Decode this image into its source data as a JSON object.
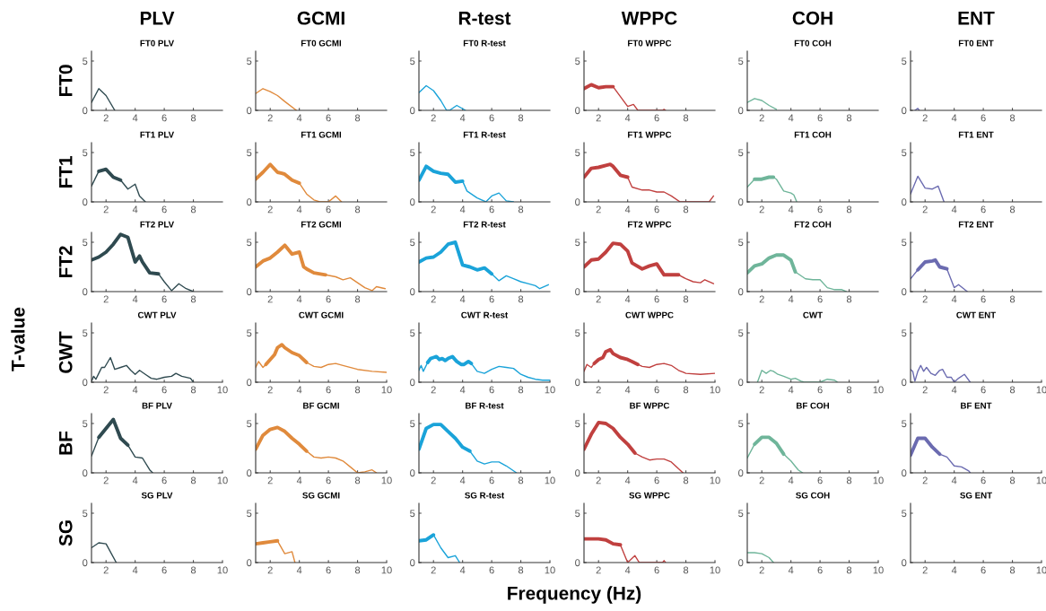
{
  "chart_data": [
    {
      "type": "line",
      "title": "FT0 PLV",
      "subtitle": "PLV",
      "ylabel": "FT0",
      "xlim": [
        1,
        10
      ],
      "ylim": [
        0,
        6
      ],
      "xticks": [
        2,
        4,
        6,
        8
      ],
      "yticks": [
        0,
        5
      ],
      "series": [
        {
          "color": "#2f4a50",
          "x": [
            1,
            1.5,
            2,
            2.6
          ],
          "values": [
            0.8,
            2.2,
            1.5,
            0
          ]
        }
      ]
    },
    {
      "type": "line",
      "title": "FT0 GCMI",
      "subtitle": "GCMI",
      "xlim": [
        1,
        10
      ],
      "ylim": [
        0,
        6
      ],
      "xticks": [
        2,
        4,
        6,
        8
      ],
      "yticks": [
        0,
        5
      ],
      "series": [
        {
          "color": "#e08a3c",
          "x": [
            1,
            1.5,
            2,
            2.5,
            3,
            3.8
          ],
          "values": [
            1.7,
            2.2,
            1.9,
            1.5,
            0.9,
            0
          ]
        }
      ]
    },
    {
      "type": "line",
      "title": "FT0 R-test",
      "subtitle": "R-test",
      "xlim": [
        1,
        10
      ],
      "ylim": [
        0,
        6
      ],
      "xticks": [
        2,
        4,
        6,
        8
      ],
      "yticks": [
        0,
        5
      ],
      "series": [
        {
          "color": "#1aa3d9",
          "x": [
            1,
            1.5,
            2,
            2.5,
            2.9,
            3.1,
            3.6,
            4.2
          ],
          "values": [
            1.8,
            2.5,
            2.0,
            1.0,
            0,
            0,
            0.5,
            0
          ]
        }
      ]
    },
    {
      "type": "line",
      "title": "FT0 WPPC",
      "subtitle": "WPPC",
      "xlim": [
        1,
        10
      ],
      "ylim": [
        0,
        6
      ],
      "xticks": [
        2,
        4,
        6,
        8
      ],
      "yticks": [
        0,
        5
      ],
      "series": [
        {
          "color": "#c0403f",
          "x": [
            1,
            1.5,
            2,
            2.5,
            3,
            3.5,
            4,
            4.4,
            4.7,
            6.4,
            6.5,
            6.6
          ],
          "values": [
            2.2,
            2.6,
            2.3,
            2.4,
            2.4,
            1.4,
            0.4,
            0.6,
            0,
            0,
            0.1,
            0
          ]
        },
        {
          "color": "#c0403f",
          "x": [
            1,
            1.5,
            2,
            2.5,
            3
          ],
          "values": [
            2.2,
            2.6,
            2.3,
            2.4,
            2.4
          ]
        }
      ]
    },
    {
      "type": "line",
      "title": "FT0 COH",
      "subtitle": "COH",
      "xlim": [
        1,
        10
      ],
      "ylim": [
        0,
        6
      ],
      "xticks": [
        2,
        4,
        6,
        8
      ],
      "yticks": [
        0,
        5
      ],
      "series": [
        {
          "color": "#6fb59a",
          "x": [
            1,
            1.5,
            2,
            2.5,
            3
          ],
          "values": [
            0.8,
            1.2,
            1.0,
            0.5,
            0.1
          ]
        }
      ]
    },
    {
      "type": "line",
      "title": "FT0 ENT",
      "subtitle": "ENT",
      "xlim": [
        1,
        10
      ],
      "ylim": [
        0,
        6
      ],
      "xticks": [
        2,
        4,
        6,
        8
      ],
      "yticks": [
        0,
        5
      ],
      "series": [
        {
          "color": "#6b6bb0",
          "x": [
            1.3,
            1.5,
            1.6
          ],
          "values": [
            0,
            0.2,
            0
          ]
        }
      ]
    },
    {
      "type": "line",
      "title": "FT1 PLV",
      "ylabel": "FT1",
      "xlim": [
        1,
        10
      ],
      "ylim": [
        0,
        6
      ],
      "xticks": [
        2,
        4,
        6,
        8
      ],
      "yticks": [
        0,
        5
      ],
      "series": [
        {
          "color": "#2f4a50",
          "x": [
            1,
            1.5,
            2,
            2.5,
            3,
            3.5,
            4,
            4.3,
            4.7
          ],
          "values": [
            1.6,
            3.1,
            3.3,
            2.5,
            2.2,
            1.3,
            1.8,
            0.6,
            0
          ]
        },
        {
          "color": "#2f4a50",
          "x": [
            1.5,
            2,
            2.5,
            3
          ],
          "values": [
            3.1,
            3.3,
            2.5,
            2.2
          ]
        }
      ]
    },
    {
      "type": "line",
      "title": "FT1 GCMI",
      "xlim": [
        1,
        10
      ],
      "ylim": [
        0,
        6
      ],
      "xticks": [
        2,
        4,
        6,
        8
      ],
      "yticks": [
        0,
        5
      ],
      "series": [
        {
          "color": "#e08a3c",
          "x": [
            1,
            1.5,
            2,
            2.5,
            2.8,
            3,
            3.5,
            4,
            4.5,
            5,
            5.4,
            6,
            6.5,
            6.9
          ],
          "values": [
            2.3,
            3.0,
            3.8,
            3.0,
            2.9,
            2.8,
            2.2,
            1.9,
            0.8,
            0.2,
            0,
            0,
            0.6,
            0
          ]
        },
        {
          "color": "#e08a3c",
          "x": [
            1,
            1.5,
            2,
            2.5,
            2.8,
            3,
            3.5,
            4
          ],
          "values": [
            2.3,
            3.0,
            3.8,
            3.0,
            2.9,
            2.8,
            2.2,
            1.9
          ]
        }
      ]
    },
    {
      "type": "line",
      "title": "FT1 R-test",
      "xlim": [
        1,
        10
      ],
      "ylim": [
        0,
        6
      ],
      "xticks": [
        2,
        4,
        6,
        8
      ],
      "yticks": [
        0,
        5
      ],
      "series": [
        {
          "color": "#1aa3d9",
          "x": [
            1,
            1.5,
            2,
            2.5,
            3,
            3.5,
            4,
            4.3,
            5,
            5.6,
            6,
            6.5,
            7,
            7.5
          ],
          "values": [
            2.2,
            3.6,
            3.1,
            2.9,
            2.8,
            2.0,
            2.1,
            1.1,
            0.4,
            0,
            0.6,
            0.9,
            0.1,
            0
          ]
        },
        {
          "color": "#1aa3d9",
          "x": [
            1,
            1.5,
            2,
            2.5,
            3,
            3.5,
            4
          ],
          "values": [
            2.2,
            3.6,
            3.1,
            2.9,
            2.8,
            2.0,
            2.1
          ]
        }
      ]
    },
    {
      "type": "line",
      "title": "FT1 WPPC",
      "xlim": [
        1,
        10
      ],
      "ylim": [
        0,
        6
      ],
      "xticks": [
        2,
        4,
        6,
        8
      ],
      "yticks": [
        0,
        5
      ],
      "series": [
        {
          "color": "#c0403f",
          "x": [
            1,
            1.5,
            2,
            2.5,
            2.8,
            3,
            3.5,
            4,
            4.3,
            5,
            5.5,
            6,
            6.5,
            7,
            7.6,
            9.6,
            9.9
          ],
          "values": [
            2.5,
            3.4,
            3.5,
            3.7,
            3.8,
            3.6,
            2.7,
            2.5,
            1.5,
            1.2,
            1.2,
            1.0,
            1.0,
            0.6,
            0,
            0,
            0.6
          ]
        },
        {
          "color": "#c0403f",
          "x": [
            1,
            1.5,
            2,
            2.5,
            2.8,
            3,
            3.5,
            4
          ],
          "values": [
            2.5,
            3.4,
            3.5,
            3.7,
            3.8,
            3.6,
            2.7,
            2.5
          ]
        }
      ]
    },
    {
      "type": "line",
      "title": "FT1 COH",
      "xlim": [
        1,
        10
      ],
      "ylim": [
        0,
        6
      ],
      "xticks": [
        2,
        4,
        6,
        8
      ],
      "yticks": [
        0,
        5
      ],
      "series": [
        {
          "color": "#6fb59a",
          "x": [
            1,
            1.5,
            2,
            2.5,
            2.8,
            3,
            3.5,
            4,
            4.2,
            4.4
          ],
          "values": [
            1.5,
            2.3,
            2.3,
            2.5,
            2.5,
            2.3,
            1.1,
            0.9,
            0.7,
            0
          ]
        },
        {
          "color": "#6fb59a",
          "x": [
            1.5,
            2,
            2.5,
            2.8
          ],
          "values": [
            2.3,
            2.3,
            2.5,
            2.5
          ]
        }
      ]
    },
    {
      "type": "line",
      "title": "FT1 ENT",
      "xlim": [
        1,
        10
      ],
      "ylim": [
        0,
        6
      ],
      "xticks": [
        2,
        4,
        6,
        8
      ],
      "yticks": [
        0,
        5
      ],
      "series": [
        {
          "color": "#6b6bb0",
          "x": [
            1,
            1.5,
            2,
            2.5,
            2.9,
            3.3
          ],
          "values": [
            0.8,
            2.6,
            1.4,
            1.3,
            1.6,
            0
          ]
        }
      ]
    },
    {
      "type": "line",
      "title": "FT2 PLV",
      "ylabel": "FT2",
      "xlim": [
        1,
        10
      ],
      "ylim": [
        0,
        6
      ],
      "xticks": [
        2,
        4,
        6,
        8
      ],
      "yticks": [
        0,
        5
      ],
      "series": [
        {
          "color": "#2f4a50",
          "x": [
            1,
            1.5,
            2,
            2.5,
            3,
            3.5,
            4,
            4.3,
            4.5,
            5,
            5.6,
            6,
            6.5,
            7,
            7.5,
            8
          ],
          "values": [
            3.2,
            3.5,
            4.0,
            4.8,
            5.8,
            5.5,
            3.0,
            3.6,
            3.0,
            1.9,
            1.8,
            1.0,
            0.1,
            0.8,
            0.3,
            0
          ]
        },
        {
          "color": "#2f4a50",
          "x": [
            1,
            1.5,
            2,
            2.5,
            3,
            3.5,
            4,
            4.3,
            4.5,
            5,
            5.6
          ],
          "values": [
            3.2,
            3.5,
            4.0,
            4.8,
            5.8,
            5.5,
            3.0,
            3.6,
            3.0,
            1.9,
            1.8
          ]
        }
      ]
    },
    {
      "type": "line",
      "title": "FT2 GCMI",
      "xlim": [
        1,
        10
      ],
      "ylim": [
        0,
        6
      ],
      "xticks": [
        2,
        4,
        6,
        8
      ],
      "yticks": [
        0,
        5
      ],
      "series": [
        {
          "color": "#e08a3c",
          "x": [
            1,
            1.5,
            2,
            2.5,
            3,
            3.5,
            4,
            4.3,
            4.5,
            5,
            5.8,
            6.5,
            7,
            7.5,
            8,
            8.5,
            9,
            9.3,
            9.9
          ],
          "values": [
            2.5,
            3.1,
            3.4,
            4.0,
            4.7,
            3.8,
            4.0,
            2.5,
            2.3,
            1.9,
            1.7,
            1.5,
            1.2,
            1.4,
            0.9,
            0.4,
            0.1,
            0.5,
            0.3
          ]
        },
        {
          "color": "#e08a3c",
          "x": [
            1,
            1.5,
            2,
            2.5,
            3,
            3.5,
            4,
            4.3,
            4.5,
            5,
            5.8
          ],
          "values": [
            2.5,
            3.1,
            3.4,
            4.0,
            4.7,
            3.8,
            4.0,
            2.5,
            2.3,
            1.9,
            1.7
          ]
        }
      ]
    },
    {
      "type": "line",
      "title": "FT2 R-test",
      "xlim": [
        1,
        10
      ],
      "ylim": [
        0,
        6
      ],
      "xticks": [
        2,
        4,
        6,
        8
      ],
      "yticks": [
        0,
        5
      ],
      "series": [
        {
          "color": "#1aa3d9",
          "x": [
            1,
            1.5,
            2,
            2.5,
            3,
            3.5,
            4,
            4.5,
            5,
            5.5,
            6,
            6.5,
            7,
            7.5,
            8,
            8.5,
            9,
            9.3,
            9.9
          ],
          "values": [
            3.0,
            3.4,
            3.5,
            4.0,
            4.8,
            5.0,
            2.7,
            2.5,
            2.2,
            2.4,
            1.8,
            1.1,
            1.6,
            1.3,
            1.0,
            0.8,
            0.6,
            0.3,
            0.7
          ]
        },
        {
          "color": "#1aa3d9",
          "x": [
            1,
            1.5,
            2,
            2.5,
            3,
            3.5,
            4,
            4.5,
            5,
            5.5,
            6
          ],
          "values": [
            3.0,
            3.4,
            3.5,
            4.0,
            4.8,
            5.0,
            2.7,
            2.5,
            2.2,
            2.4,
            1.8
          ]
        }
      ]
    },
    {
      "type": "line",
      "title": "FT2 WPPC",
      "xlim": [
        1,
        10
      ],
      "ylim": [
        0,
        6
      ],
      "xticks": [
        2,
        4,
        6,
        8
      ],
      "yticks": [
        0,
        5
      ],
      "series": [
        {
          "color": "#c0403f",
          "x": [
            1,
            1.5,
            2,
            2.5,
            3,
            3.5,
            4,
            4.3,
            5,
            5.5,
            6,
            6.5,
            7,
            7.5,
            8,
            8.5,
            9,
            9.3,
            9.9
          ],
          "values": [
            2.5,
            3.2,
            3.3,
            4.0,
            4.9,
            4.8,
            4.1,
            2.9,
            2.3,
            2.6,
            2.8,
            1.7,
            1.7,
            1.7,
            1.3,
            1.0,
            0.9,
            1.2,
            0.8
          ]
        },
        {
          "color": "#c0403f",
          "x": [
            1,
            1.5,
            2,
            2.5,
            3,
            3.5,
            4,
            4.3,
            5,
            5.5,
            6,
            6.5,
            7,
            7.5
          ],
          "values": [
            2.5,
            3.2,
            3.3,
            4.0,
            4.9,
            4.8,
            4.1,
            2.9,
            2.3,
            2.6,
            2.8,
            1.7,
            1.7,
            1.7
          ]
        }
      ]
    },
    {
      "type": "line",
      "title": "FT2 COH",
      "xlim": [
        1,
        10
      ],
      "ylim": [
        0,
        6
      ],
      "xticks": [
        2,
        4,
        6,
        8
      ],
      "yticks": [
        0,
        5
      ],
      "series": [
        {
          "color": "#6fb59a",
          "x": [
            1,
            1.5,
            2,
            2.5,
            3,
            3.5,
            4,
            4.3,
            5,
            5.5,
            6,
            6.5,
            7,
            7.5,
            7.8
          ],
          "values": [
            1.9,
            2.6,
            2.8,
            3.4,
            3.7,
            3.7,
            3.2,
            2.0,
            1.3,
            1.2,
            1.2,
            0.4,
            0.2,
            0.2,
            0
          ]
        },
        {
          "color": "#6fb59a",
          "x": [
            1,
            1.5,
            2,
            2.5,
            3,
            3.5,
            4,
            4.3
          ],
          "values": [
            1.9,
            2.6,
            2.8,
            3.4,
            3.7,
            3.7,
            3.2,
            2.0
          ]
        }
      ]
    },
    {
      "type": "line",
      "title": "FT2 ENT",
      "xlim": [
        1,
        10
      ],
      "ylim": [
        0,
        6
      ],
      "xticks": [
        2,
        4,
        6,
        8
      ],
      "yticks": [
        0,
        5
      ],
      "series": [
        {
          "color": "#6b6bb0",
          "x": [
            1,
            1.5,
            2,
            2.5,
            2.7,
            3,
            3.5,
            4,
            4.3,
            4.9
          ],
          "values": [
            1.3,
            2.2,
            3.0,
            3.1,
            3.2,
            2.5,
            2.3,
            0.4,
            0.7,
            0
          ]
        },
        {
          "color": "#6b6bb0",
          "x": [
            1.5,
            2,
            2.5,
            2.7,
            3,
            3.5
          ],
          "values": [
            2.2,
            3.0,
            3.1,
            3.2,
            2.5,
            2.3
          ]
        }
      ]
    },
    {
      "type": "line",
      "title": "CWT PLV",
      "ylabel": "CWT",
      "annotations": [
        "T-value"
      ],
      "xlim": [
        1,
        10
      ],
      "ylim": [
        0,
        6
      ],
      "xticks": [
        2,
        4,
        6,
        8,
        10
      ],
      "yticks": [
        0,
        5
      ],
      "series": [
        {
          "color": "#2f4a50",
          "x": [
            1,
            1.15,
            1.3,
            1.5,
            1.7,
            1.9,
            2.1,
            2.3,
            2.6,
            3,
            3.4,
            3.7,
            4,
            4.3,
            4.7,
            5.1,
            5.5,
            6,
            6.5,
            6.8,
            7.2,
            7.8,
            8
          ],
          "values": [
            0.1,
            0.6,
            0.3,
            0.9,
            1.5,
            1.5,
            2.0,
            2.5,
            1.3,
            1.5,
            1.7,
            1.2,
            0.8,
            1.2,
            0.8,
            0.4,
            0.3,
            0.5,
            0.6,
            0.9,
            0.6,
            0.4,
            0
          ]
        }
      ]
    },
    {
      "type": "line",
      "title": "CWT GCMI",
      "xlim": [
        1,
        10
      ],
      "ylim": [
        0,
        6
      ],
      "xticks": [
        2,
        4,
        6,
        8,
        10
      ],
      "yticks": [
        0,
        5
      ],
      "series": [
        {
          "color": "#e08a3c",
          "x": [
            1,
            1.2,
            1.5,
            1.7,
            2,
            2.3,
            2.5,
            2.8,
            3,
            3.5,
            4,
            4.5,
            5,
            5.5,
            6,
            6.5,
            7,
            8,
            9,
            10
          ],
          "values": [
            1.5,
            2.1,
            1.5,
            1.8,
            2.3,
            2.8,
            3.5,
            3.8,
            3.5,
            3.0,
            2.7,
            2.0,
            1.6,
            1.5,
            1.8,
            1.9,
            1.7,
            1.3,
            1.1,
            1.0
          ]
        },
        {
          "color": "#e08a3c",
          "x": [
            1.7,
            2,
            2.3,
            2.5,
            2.8,
            3,
            3.5,
            4,
            4.5
          ],
          "values": [
            1.8,
            2.3,
            2.8,
            3.5,
            3.8,
            3.5,
            3.0,
            2.7,
            2.0
          ]
        }
      ]
    },
    {
      "type": "line",
      "title": "CWT R-test",
      "xlim": [
        1,
        10
      ],
      "ylim": [
        0,
        6
      ],
      "xticks": [
        2,
        4,
        6,
        8,
        10
      ],
      "yticks": [
        0,
        5
      ],
      "series": [
        {
          "color": "#1aa3d9",
          "x": [
            1,
            1.15,
            1.3,
            1.6,
            1.8,
            2,
            2.2,
            2.4,
            2.6,
            2.8,
            3,
            3.3,
            3.6,
            3.9,
            4.1,
            4.4,
            4.6,
            5,
            5.5,
            6,
            6.5,
            7,
            7.5,
            8,
            8.5,
            9,
            9.5,
            10
          ],
          "values": [
            1.2,
            1.7,
            1.1,
            2.0,
            2.4,
            2.5,
            2.6,
            2.3,
            2.4,
            2.2,
            2.4,
            2.6,
            2.1,
            1.8,
            1.8,
            2.1,
            1.9,
            1.1,
            0.9,
            1.3,
            1.6,
            1.5,
            1.4,
            0.8,
            0.5,
            0.3,
            0.2,
            0.2
          ]
        },
        {
          "color": "#1aa3d9",
          "x": [
            1.6,
            1.8,
            2,
            2.2,
            2.4,
            2.6,
            2.8,
            3,
            3.3,
            3.6,
            3.9,
            4.1,
            4.4,
            4.6
          ],
          "values": [
            2.0,
            2.4,
            2.5,
            2.6,
            2.3,
            2.4,
            2.2,
            2.4,
            2.6,
            2.1,
            1.8,
            1.8,
            2.1,
            1.9
          ]
        }
      ]
    },
    {
      "type": "line",
      "title": "CWT WPPC",
      "xlim": [
        1,
        10
      ],
      "ylim": [
        0,
        6
      ],
      "xticks": [
        2,
        4,
        6,
        8,
        10
      ],
      "yticks": [
        0,
        5
      ],
      "series": [
        {
          "color": "#c0403f",
          "x": [
            1,
            1.2,
            1.5,
            1.7,
            2,
            2.3,
            2.5,
            2.8,
            3,
            3.5,
            4,
            4.3,
            4.7,
            5,
            5.5,
            6,
            6.5,
            7,
            7.5,
            8,
            9,
            10
          ],
          "values": [
            1.1,
            1.8,
            1.5,
            1.9,
            2.3,
            2.5,
            3.1,
            3.3,
            2.9,
            2.5,
            2.3,
            2.1,
            1.8,
            1.6,
            1.5,
            1.8,
            1.9,
            1.7,
            1.2,
            0.9,
            0.8,
            0.9
          ]
        },
        {
          "color": "#c0403f",
          "x": [
            1.7,
            2,
            2.3,
            2.5,
            2.8,
            3,
            3.5,
            4,
            4.3,
            4.7
          ],
          "values": [
            1.9,
            2.3,
            2.5,
            3.1,
            3.3,
            2.9,
            2.5,
            2.3,
            2.1,
            1.8
          ]
        }
      ]
    },
    {
      "type": "line",
      "title": "CWT",
      "xlim": [
        1,
        10
      ],
      "ylim": [
        0,
        6
      ],
      "xticks": [
        2,
        4,
        6,
        8,
        10
      ],
      "yticks": [
        0,
        5
      ],
      "series": [
        {
          "color": "#6fb59a",
          "x": [
            1.7,
            2,
            2.3,
            2.6,
            2.8,
            3.1,
            3.5,
            4,
            4.3,
            4.7,
            4.9,
            6,
            6.5,
            7,
            7.2
          ],
          "values": [
            0,
            1.2,
            0.9,
            1.2,
            1.1,
            0.8,
            0.6,
            0.3,
            0.4,
            0.1,
            0,
            0,
            0.3,
            0.2,
            0
          ]
        }
      ]
    },
    {
      "type": "line",
      "title": "CWT ENT",
      "xlim": [
        1,
        10
      ],
      "ylim": [
        0,
        6
      ],
      "xticks": [
        2,
        4,
        6,
        8,
        10
      ],
      "yticks": [
        0,
        5
      ],
      "series": [
        {
          "color": "#6b6bb0",
          "x": [
            1,
            1.15,
            1.3,
            1.5,
            1.7,
            1.9,
            2.1,
            2.4,
            2.7,
            3,
            3.2,
            3.5,
            3.8,
            4,
            4.3,
            4.7,
            5.1
          ],
          "values": [
            1.3,
            1.1,
            0.1,
            1.1,
            1.7,
            1.1,
            1.5,
            0.9,
            0.7,
            1.2,
            1.3,
            0.5,
            0.5,
            0,
            0.4,
            0.8,
            0
          ]
        }
      ]
    },
    {
      "type": "line",
      "title": "BF PLV",
      "ylabel": "BF",
      "xlim": [
        1,
        10
      ],
      "ylim": [
        0,
        6
      ],
      "xticks": [
        2,
        4,
        6,
        8,
        10
      ],
      "yticks": [
        0,
        5
      ],
      "series": [
        {
          "color": "#2f4a50",
          "x": [
            1,
            1.5,
            2,
            2.5,
            3,
            3.5,
            4,
            4.5,
            5,
            5.2
          ],
          "values": [
            1.7,
            3.6,
            4.5,
            5.4,
            3.5,
            2.8,
            1.6,
            1.5,
            0.3,
            0
          ]
        },
        {
          "color": "#2f4a50",
          "x": [
            1.5,
            2,
            2.5,
            3,
            3.5
          ],
          "values": [
            3.6,
            4.5,
            5.4,
            3.5,
            2.8
          ]
        }
      ]
    },
    {
      "type": "line",
      "title": "BF GCMI",
      "xlim": [
        1,
        10
      ],
      "ylim": [
        0,
        6
      ],
      "xticks": [
        2,
        4,
        6,
        8,
        10
      ],
      "yticks": [
        0,
        5
      ],
      "series": [
        {
          "color": "#e08a3c",
          "x": [
            1,
            1.5,
            2,
            2.5,
            3,
            3.5,
            4,
            4.5,
            5,
            5.5,
            6,
            6.5,
            7,
            7.5,
            8,
            8.5,
            9,
            9.3
          ],
          "values": [
            2.4,
            3.8,
            4.4,
            4.6,
            4.2,
            3.5,
            2.9,
            2.2,
            1.6,
            1.5,
            1.6,
            1.5,
            1.2,
            0.6,
            0,
            0.1,
            0.3,
            0
          ]
        },
        {
          "color": "#e08a3c",
          "x": [
            1,
            1.5,
            2,
            2.5,
            3,
            3.5,
            4,
            4.5
          ],
          "values": [
            2.4,
            3.8,
            4.4,
            4.6,
            4.2,
            3.5,
            2.9,
            2.2
          ]
        }
      ]
    },
    {
      "type": "line",
      "title": "BF R-test",
      "xlim": [
        1,
        10
      ],
      "ylim": [
        0,
        6
      ],
      "xticks": [
        2,
        4,
        6,
        8,
        10
      ],
      "yticks": [
        0,
        5
      ],
      "series": [
        {
          "color": "#1aa3d9",
          "x": [
            1,
            1.5,
            2,
            2.5,
            3,
            3.5,
            4,
            4.5,
            5,
            5.5,
            6,
            6.5,
            7,
            7.5,
            7.7
          ],
          "values": [
            2.4,
            4.5,
            4.9,
            4.9,
            4.2,
            3.5,
            2.6,
            2.2,
            1.2,
            0.9,
            1.1,
            1.1,
            0.7,
            0.2,
            0
          ]
        },
        {
          "color": "#1aa3d9",
          "x": [
            1,
            1.5,
            2,
            2.5,
            3,
            3.5,
            4,
            4.5
          ],
          "values": [
            2.4,
            4.5,
            4.9,
            4.9,
            4.2,
            3.5,
            2.6,
            2.2
          ]
        }
      ]
    },
    {
      "type": "line",
      "title": "BF WPPC",
      "xlim": [
        1,
        10
      ],
      "ylim": [
        0,
        6
      ],
      "xticks": [
        2,
        4,
        6,
        8,
        10
      ],
      "yticks": [
        0,
        5
      ],
      "series": [
        {
          "color": "#c0403f",
          "x": [
            1,
            1.5,
            2,
            2.5,
            3,
            3.5,
            4,
            4.5,
            5,
            5.5,
            6,
            6.5,
            7,
            7.5,
            7.8
          ],
          "values": [
            2.4,
            3.9,
            5.1,
            5.0,
            4.5,
            3.6,
            2.9,
            2.0,
            1.6,
            1.3,
            1.4,
            1.4,
            1.1,
            0.4,
            0
          ]
        },
        {
          "color": "#c0403f",
          "x": [
            1,
            1.5,
            2,
            2.5,
            3,
            3.5,
            4,
            4.5
          ],
          "values": [
            2.4,
            3.9,
            5.1,
            5.0,
            4.5,
            3.6,
            2.9,
            2.0
          ]
        }
      ]
    },
    {
      "type": "line",
      "title": "BF COH",
      "xlim": [
        1,
        10
      ],
      "ylim": [
        0,
        6
      ],
      "xticks": [
        2,
        4,
        6,
        8,
        10
      ],
      "yticks": [
        0,
        5
      ],
      "series": [
        {
          "color": "#6fb59a",
          "x": [
            1,
            1.5,
            2,
            2.5,
            3,
            3.5,
            4,
            4.5,
            4.8
          ],
          "values": [
            1.5,
            2.9,
            3.6,
            3.6,
            3.0,
            1.9,
            1.2,
            0.3,
            0
          ]
        },
        {
          "color": "#6fb59a",
          "x": [
            1.5,
            2,
            2.5,
            3,
            3.5
          ],
          "values": [
            2.9,
            3.6,
            3.6,
            3.0,
            1.9
          ]
        }
      ]
    },
    {
      "type": "line",
      "title": "BF ENT",
      "xlim": [
        1,
        10
      ],
      "ylim": [
        0,
        6
      ],
      "xticks": [
        2,
        4,
        6,
        8,
        10
      ],
      "yticks": [
        0,
        5
      ],
      "series": [
        {
          "color": "#6b6bb0",
          "x": [
            1,
            1.5,
            2,
            2.5,
            3,
            3.5,
            4,
            4.5,
            5,
            5.1
          ],
          "values": [
            1.8,
            3.5,
            3.5,
            2.6,
            1.9,
            1.6,
            0.7,
            0.6,
            0.2,
            0
          ]
        },
        {
          "color": "#6b6bb0",
          "x": [
            1,
            1.5,
            2,
            2.5,
            3
          ],
          "values": [
            1.8,
            3.5,
            3.5,
            2.6,
            1.9
          ]
        }
      ]
    },
    {
      "type": "line",
      "title": "SG PLV",
      "ylabel": "SG",
      "xlim": [
        1,
        10
      ],
      "ylim": [
        0,
        6
      ],
      "xticks": [
        2,
        4,
        6,
        8,
        10
      ],
      "yticks": [
        0,
        5
      ],
      "series": [
        {
          "color": "#2f4a50",
          "x": [
            1,
            1.5,
            2,
            2.7
          ],
          "values": [
            1.5,
            2.0,
            1.9,
            0
          ]
        }
      ]
    },
    {
      "type": "line",
      "title": "SG GCMI",
      "xlim": [
        1,
        10
      ],
      "ylim": [
        0,
        6
      ],
      "xticks": [
        2,
        4,
        6,
        8,
        10
      ],
      "yticks": [
        0,
        5
      ],
      "series": [
        {
          "color": "#e08a3c",
          "x": [
            1,
            1.5,
            2,
            2.5,
            3,
            3.5,
            3.7
          ],
          "values": [
            1.9,
            2.0,
            2.1,
            2.2,
            0.9,
            1.1,
            0
          ]
        },
        {
          "color": "#e08a3c",
          "x": [
            1,
            1.5,
            2,
            2.5
          ],
          "values": [
            1.9,
            2.0,
            2.1,
            2.2
          ]
        }
      ]
    },
    {
      "type": "line",
      "title": "SG R-test",
      "xlim": [
        1,
        10
      ],
      "ylim": [
        0,
        6
      ],
      "xticks": [
        2,
        4,
        6,
        8,
        10
      ],
      "yticks": [
        0,
        5
      ],
      "series": [
        {
          "color": "#1aa3d9",
          "x": [
            1,
            1.5,
            2,
            2.5,
            3,
            3.5,
            3.8
          ],
          "values": [
            2.2,
            2.3,
            2.8,
            1.5,
            0.5,
            0.7,
            0
          ]
        },
        {
          "color": "#1aa3d9",
          "x": [
            1,
            1.5,
            2
          ],
          "values": [
            2.2,
            2.3,
            2.8
          ]
        }
      ]
    },
    {
      "type": "line",
      "title": "SG WPPC",
      "annotations": [
        "Frequency (Hz)"
      ],
      "xlim": [
        1,
        10
      ],
      "ylim": [
        0,
        6
      ],
      "xticks": [
        2,
        4,
        6,
        8,
        10
      ],
      "yticks": [
        0,
        5
      ],
      "series": [
        {
          "color": "#c0403f",
          "x": [
            1,
            1.5,
            2,
            2.5,
            3,
            3.5,
            4,
            4.5,
            4.8,
            6.4,
            6.5,
            6.6
          ],
          "values": [
            2.4,
            2.4,
            2.4,
            2.3,
            1.9,
            1.8,
            0,
            0.7,
            0,
            0,
            0.2,
            0
          ]
        },
        {
          "color": "#c0403f",
          "x": [
            1,
            1.5,
            2,
            2.5,
            3,
            3.5
          ],
          "values": [
            2.4,
            2.4,
            2.4,
            2.3,
            1.9,
            1.8
          ]
        }
      ]
    },
    {
      "type": "line",
      "title": "SG COH",
      "xlim": [
        1,
        10
      ],
      "ylim": [
        0,
        6
      ],
      "xticks": [
        2,
        4,
        6,
        8,
        10
      ],
      "yticks": [
        0,
        5
      ],
      "series": [
        {
          "color": "#6fb59a",
          "x": [
            1,
            1.5,
            2,
            2.5,
            2.8
          ],
          "values": [
            1.0,
            1.0,
            0.9,
            0.5,
            0
          ]
        }
      ]
    },
    {
      "type": "line",
      "title": "SG ENT",
      "xlim": [
        1,
        10
      ],
      "ylim": [
        0,
        6
      ],
      "xticks": [
        2,
        4,
        6,
        8,
        10
      ],
      "yticks": [
        0,
        5
      ]
    }
  ]
}
